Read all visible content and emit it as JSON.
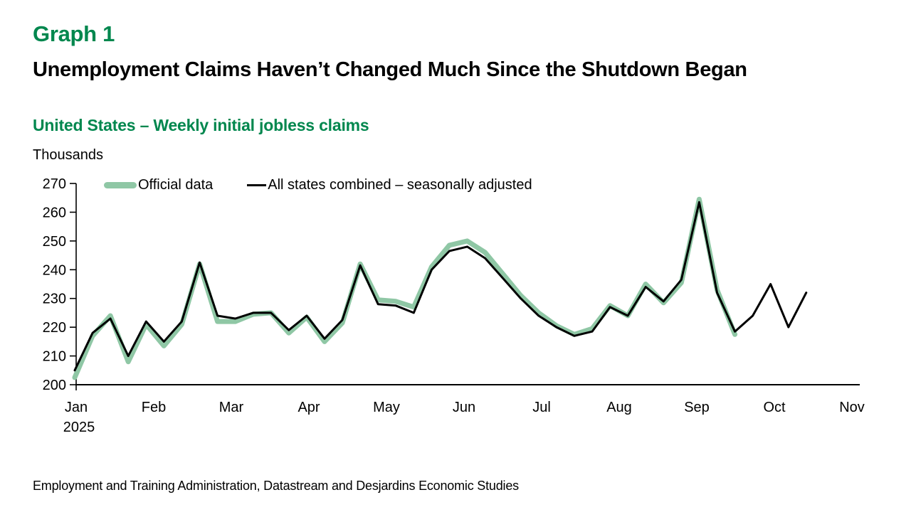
{
  "header": {
    "graph_label": "Graph 1",
    "title": "Unemployment Claims Haven’t Changed Much Since the Shutdown Began",
    "subtitle": "United States – Weekly initial jobless claims",
    "units_label": "Thousands"
  },
  "legend": {
    "official": "Official data",
    "combined": "All states combined – seasonally adjusted"
  },
  "source": "Employment and Training Administration, Datastream and Desjardins Economic Studies",
  "colors": {
    "accent_green": "#00874e",
    "line_green": "#8fc7a5",
    "line_black": "#000000",
    "axis_black": "#000000"
  },
  "chart_data": {
    "type": "line",
    "title": "United States – Weekly initial jobless claims",
    "xlabel": "",
    "ylabel": "Thousands",
    "ylim": [
      200,
      270
    ],
    "y_ticks": [
      200,
      210,
      220,
      230,
      240,
      250,
      260,
      270
    ],
    "x_tick_labels": [
      "Jan",
      "Feb",
      "Mar",
      "Apr",
      "May",
      "Jun",
      "Jul",
      "Aug",
      "Sep",
      "Oct",
      "Nov"
    ],
    "x_year_label": "2025",
    "x_unit": "weekly (one point per week starting early Jan 2025)",
    "grid": false,
    "legend_position": "top-left",
    "series": [
      {
        "name": "Official data",
        "color": "#8fc7a5",
        "stroke_width": 7,
        "values": [
          202.5,
          217,
          224,
          208,
          221,
          213.5,
          221,
          242,
          222,
          222,
          224.5,
          225,
          218,
          223.5,
          215,
          221.5,
          242,
          229.5,
          229,
          227,
          241,
          248.5,
          250,
          246,
          238.5,
          231,
          225,
          220.5,
          217.5,
          219.5,
          227.5,
          224,
          235,
          228.5,
          235.5,
          264.5,
          233,
          217.5
        ]
      },
      {
        "name": "All states combined – seasonally adjusted",
        "color": "#000000",
        "stroke_width": 3,
        "values": [
          205,
          218,
          223,
          210,
          222,
          215,
          222,
          242.5,
          224,
          223,
          225,
          225,
          219,
          224,
          216,
          222.5,
          241.5,
          228,
          227.5,
          225,
          240,
          246.5,
          248,
          244,
          237,
          230,
          224,
          220,
          217,
          218.5,
          227,
          224,
          234,
          229,
          236.5,
          263.5,
          232,
          218.5,
          224,
          235,
          220,
          232
        ]
      }
    ]
  }
}
